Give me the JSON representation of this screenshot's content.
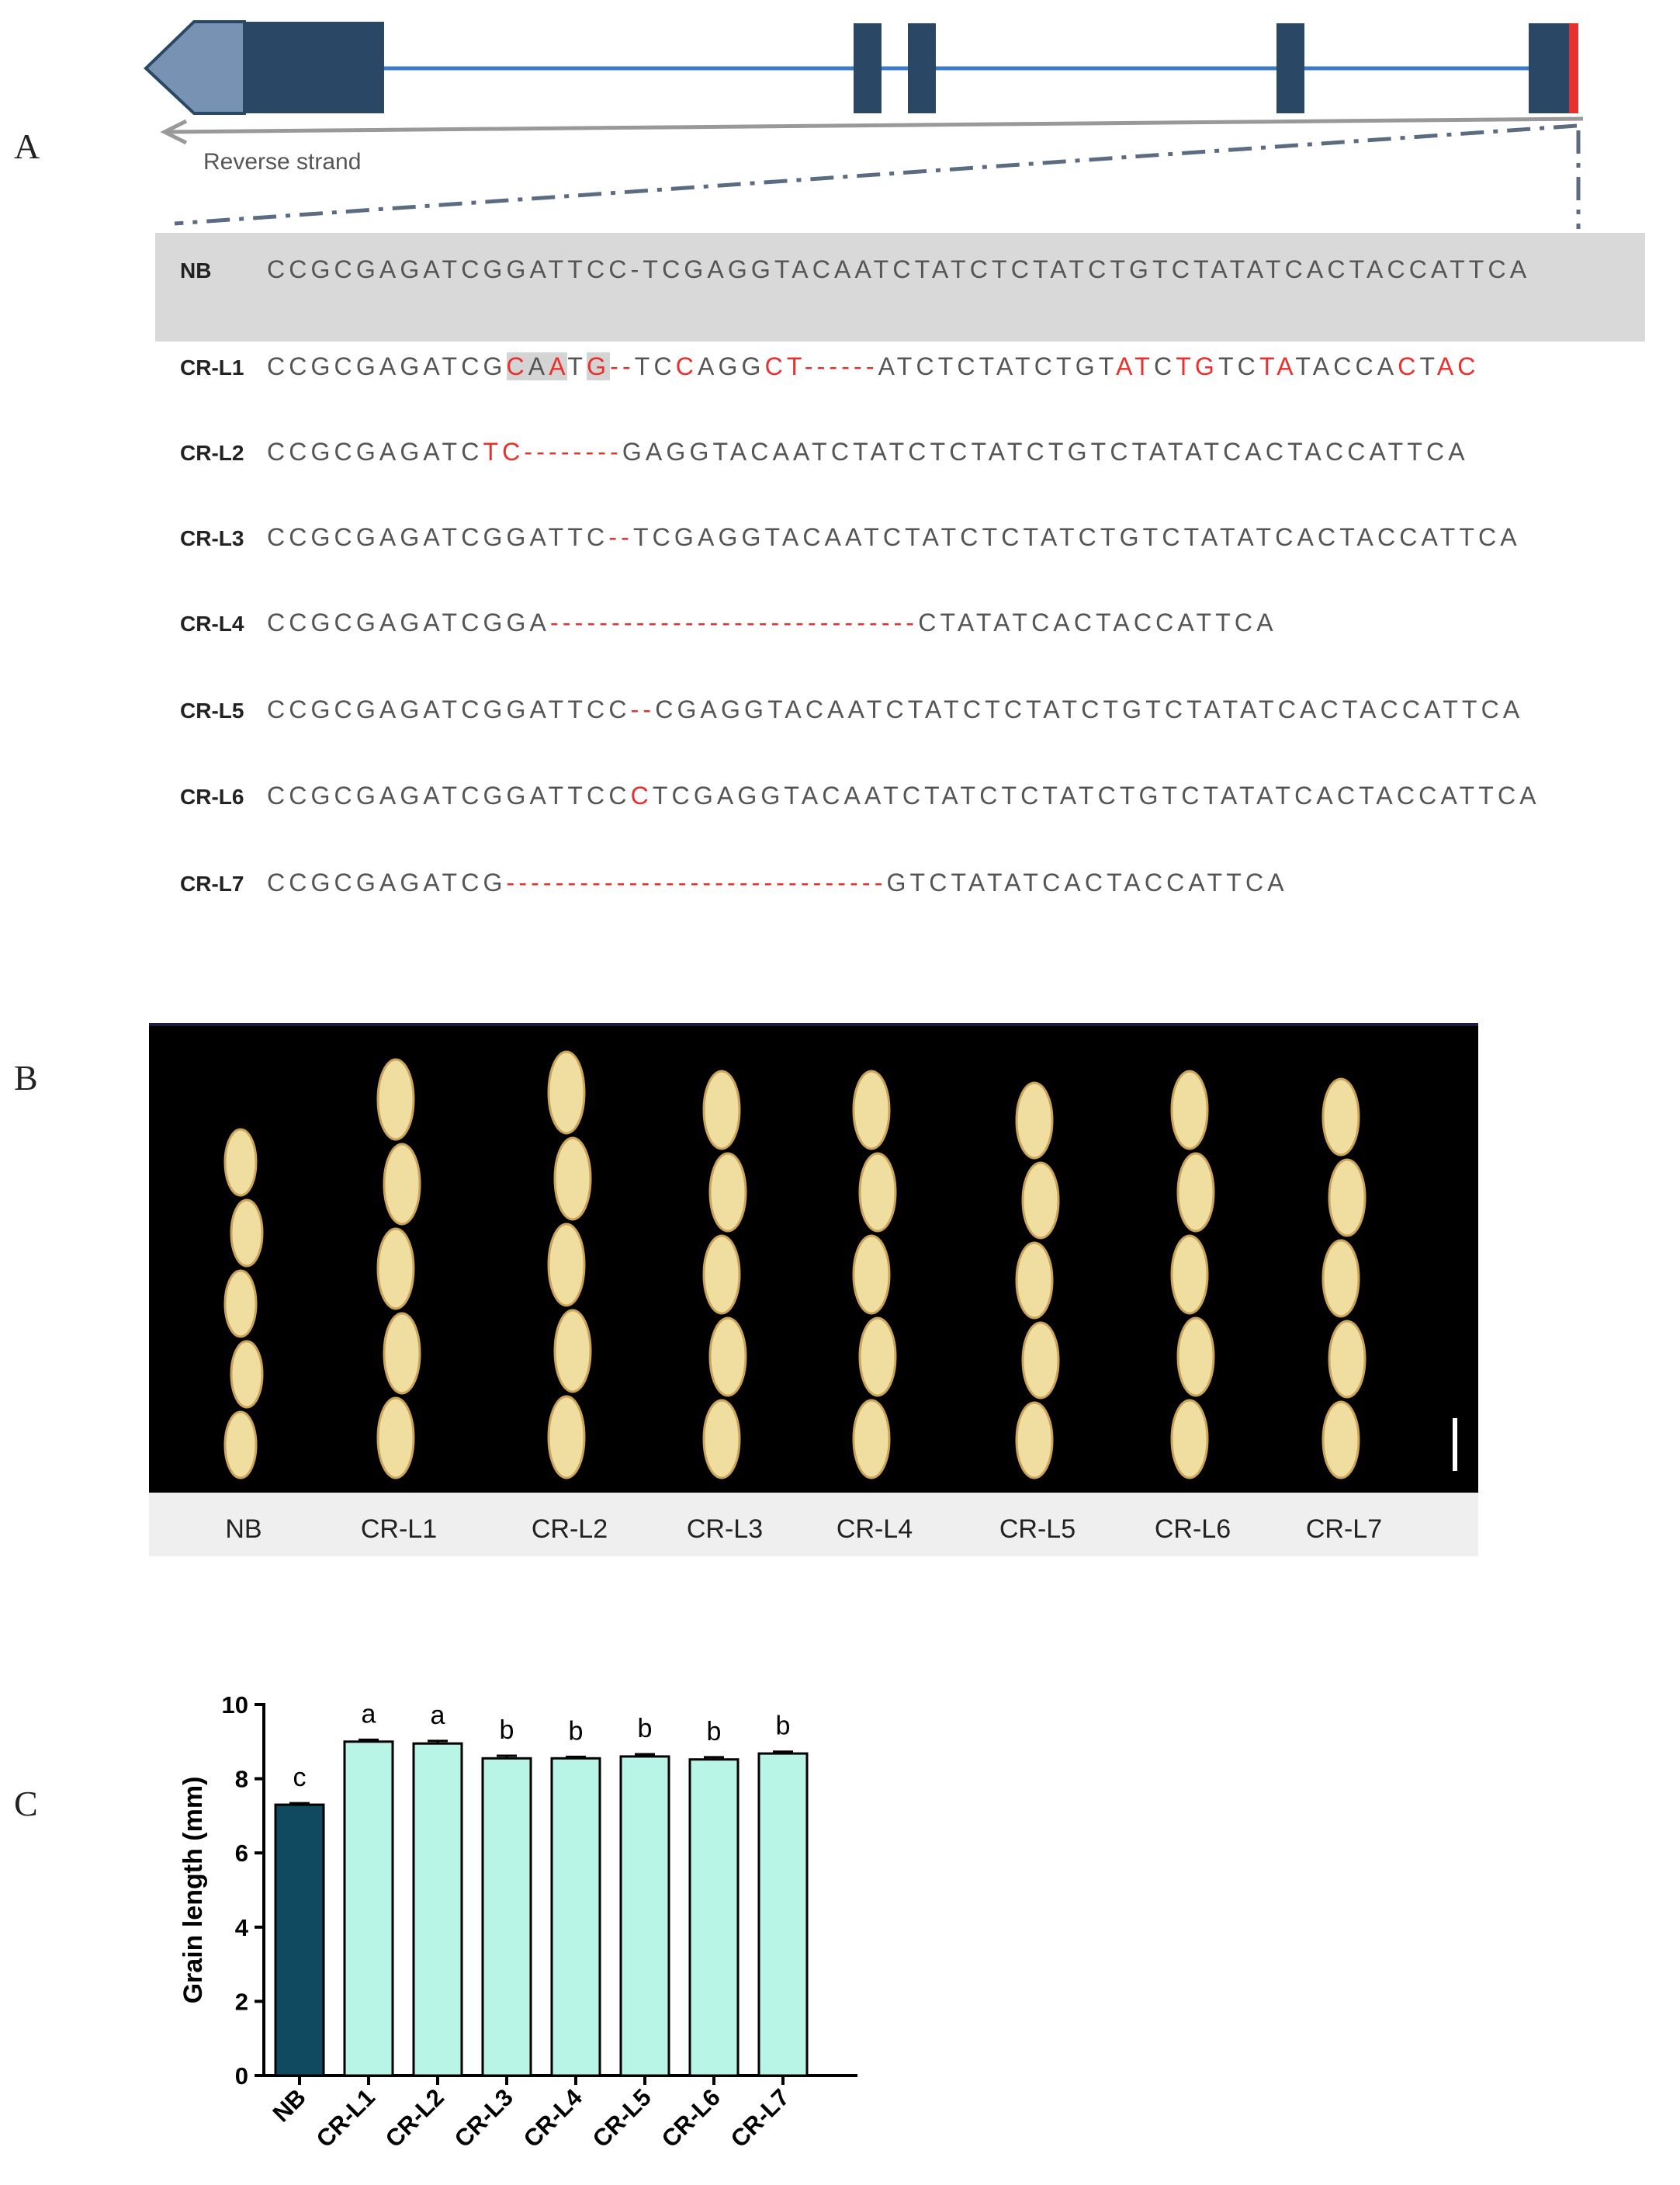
{
  "panels": {
    "a": "A",
    "b": "B",
    "c": "C"
  },
  "gene_model": {
    "strand_label": "Reverse strand",
    "colors": {
      "exon": "#2a4765",
      "utr": "#7892b3",
      "line": "#3d7ac7",
      "target": "#e8302e",
      "arrow": "#999999",
      "guide": "#5b6b82"
    }
  },
  "alignment": {
    "rows": [
      {
        "label": "NB",
        "segments": [
          {
            "t": "CCGCGAGATCGGATTCC-TCGAGGTACAATCTATCTCTATCTGTCTATATCACTACCATTCA"
          }
        ]
      },
      {
        "label": "CR-L1",
        "segments": [
          {
            "t": "CCGCGAGATCG"
          },
          {
            "t": "C",
            "c": "red",
            "h": true
          },
          {
            "t": "A",
            "h": true
          },
          {
            "t": "A",
            "c": "red",
            "h": true
          },
          {
            "t": "T"
          },
          {
            "t": "G",
            "c": "red",
            "h": true
          },
          {
            "t": "--",
            "c": "red"
          },
          {
            "t": "TC"
          },
          {
            "t": "C",
            "c": "red"
          },
          {
            "t": "AGG"
          },
          {
            "t": "CT------",
            "c": "red"
          },
          {
            "t": "ATCTCTATCTGT"
          },
          {
            "t": "AT",
            "c": "red"
          },
          {
            "t": "C"
          },
          {
            "t": "T",
            "c": "red"
          },
          {
            "t": "G",
            "c": "red"
          },
          {
            "t": "TC"
          },
          {
            "t": "TA",
            "c": "red"
          },
          {
            "t": "TACCA"
          },
          {
            "t": "C",
            "c": "red"
          },
          {
            "t": "T"
          },
          {
            "t": "AC",
            "c": "red"
          }
        ]
      },
      {
        "label": "CR-L2",
        "segments": [
          {
            "t": "CCGCGAGATC"
          },
          {
            "t": "TC--------",
            "c": "red"
          },
          {
            "t": "GAGGTACAATCTATCTCTATCTGTCTATATCACTACCATTCA"
          }
        ]
      },
      {
        "label": "CR-L3",
        "segments": [
          {
            "t": "CCGCGAGATCGGATTC"
          },
          {
            "t": "--",
            "c": "red"
          },
          {
            "t": "TCGAGGTACAATCTATCTCTATCTGTCTATATCACTACCATTCA"
          }
        ]
      },
      {
        "label": "CR-L4",
        "segments": [
          {
            "t": "CCGCGAGATCGGA"
          },
          {
            "t": "------------------------------",
            "c": "red"
          },
          {
            "t": "CTATATCACTACCATTCA"
          }
        ]
      },
      {
        "label": "CR-L5",
        "segments": [
          {
            "t": "CCGCGAGATCGGATTCC"
          },
          {
            "t": "--",
            "c": "red"
          },
          {
            "t": "CGAGGTACAATCTATCTCTATCTGTCTATATCACTACCATTCA"
          }
        ]
      },
      {
        "label": "CR-L6",
        "segments": [
          {
            "t": "CCGCGAGATCGGATTCC"
          },
          {
            "t": "C",
            "c": "red"
          },
          {
            "t": "TCGAGGTACAATCTATCTCTATCTGTCTATATCACTACCATTCA"
          }
        ]
      },
      {
        "label": "CR-L7",
        "segments": [
          {
            "t": "CCGCGAGATCG"
          },
          {
            "t": "-------------------------------",
            "c": "red"
          },
          {
            "t": "GTCTATATCACTACCATTCA"
          }
        ]
      }
    ]
  },
  "grains": {
    "labels": [
      "NB",
      "CR-L1",
      "CR-L2",
      "CR-L3",
      "CR-L4",
      "CR-L5",
      "CR-L6",
      "CR-L7"
    ],
    "grain_count_per_column": 5
  },
  "chart_data": {
    "type": "bar",
    "categories": [
      "NB",
      "CR-L1",
      "CR-L2",
      "CR-L3",
      "CR-L4",
      "CR-L5",
      "CR-L6",
      "CR-L7"
    ],
    "values": [
      7.3,
      9.0,
      8.95,
      8.55,
      8.55,
      8.6,
      8.52,
      8.68
    ],
    "errors": [
      0.04,
      0.05,
      0.07,
      0.07,
      0.04,
      0.06,
      0.06,
      0.05
    ],
    "significance": [
      "c",
      "a",
      "a",
      "b",
      "b",
      "b",
      "b",
      "b"
    ],
    "ylabel": "Grain length (mm)",
    "xlabel": "",
    "ylim": [
      0,
      10
    ],
    "yticks": [
      0,
      2,
      4,
      6,
      8,
      10
    ],
    "colors": {
      "control": "#0f4a61",
      "mutant": "#b8f5e6"
    }
  }
}
